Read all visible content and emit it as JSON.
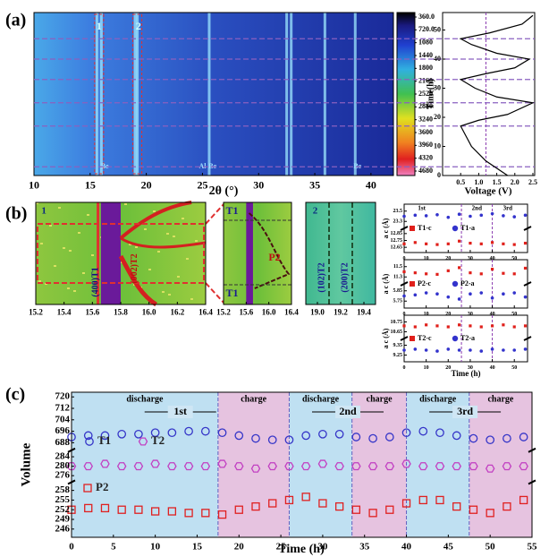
{
  "panel_labels": [
    "(a)",
    "(b)",
    "(c)"
  ],
  "chart_data": [
    {
      "type": "heatmap",
      "xlabel": "2θ (°)",
      "xlim": [
        10,
        42
      ],
      "xticks": [
        10,
        15,
        20,
        25,
        30,
        35,
        40
      ],
      "peaks": [
        15.6,
        16.0,
        19.0,
        19.2,
        25.6,
        32.5,
        32.9,
        35.9,
        38.6
      ],
      "annotations": [
        {
          "text": "1",
          "x": 15.8
        },
        {
          "text": "2",
          "x": 19.3
        },
        {
          "text": "Be",
          "x": 16.3
        },
        {
          "text": "Al",
          "x": 25.0
        },
        {
          "text": "Be",
          "x": 25.9
        },
        {
          "text": "Be",
          "x": 38.8
        }
      ],
      "colorbar": {
        "lim": [
          360,
          4680
        ],
        "ticks": [
          {
            "value": 360,
            "label": "360.0"
          },
          {
            "value": 720,
            "label": "720.0"
          },
          1080,
          1440,
          1800,
          2160,
          2520,
          2880,
          3240,
          3600,
          3960,
          4320,
          4680
        ]
      }
    },
    {
      "type": "line",
      "xlabel": "Voltage (V)",
      "ylabel": "Time(h)",
      "xlim": [
        0,
        2.55
      ],
      "xticks": [
        0.5,
        {
          "value": 1,
          "label": "1.0"
        },
        1.5,
        {
          "value": 2,
          "label": "2.0"
        },
        2.5
      ],
      "ylim": [
        0,
        56
      ],
      "yticks": [
        0,
        10,
        20,
        30,
        40,
        50
      ],
      "x": [
        1.8,
        1.2,
        0.8,
        0.5,
        1.0,
        1.8,
        2.5,
        1.5,
        0.9,
        0.5,
        1.2,
        2.0,
        2.4,
        1.5,
        0.8,
        0.5,
        1.3,
        2.2,
        2.5
      ],
      "values": [
        0,
        5,
        10,
        17,
        19,
        21,
        25,
        27,
        30,
        33,
        35,
        37,
        40,
        42,
        45,
        47,
        49,
        52,
        55
      ],
      "hlines": [
        3,
        17,
        25,
        33,
        40,
        47
      ],
      "vlines": [
        1.2
      ]
    },
    {
      "type": "heatmap",
      "xlim": [
        15.2,
        16.4
      ],
      "xticks": [
        15.2,
        15.4,
        15.6,
        15.8,
        {
          "value": 16,
          "label": "16.0"
        },
        16.2,
        16.4
      ],
      "annotations": [
        {
          "text": "1",
          "x": 15.22
        },
        {
          "text": "(400)T1",
          "x": 15.7
        },
        {
          "text": "(002)T2",
          "x": 15.95
        }
      ]
    },
    {
      "type": "heatmap",
      "xlim": [
        15.2,
        16.4
      ],
      "xticks": [
        15.2,
        15.6,
        {
          "value": 16,
          "label": "16.0"
        },
        16.4
      ],
      "annotations": [
        {
          "text": "T1",
          "x": 15.35
        },
        {
          "text": "P2",
          "x": 16.1
        },
        {
          "text": "T1",
          "x": 15.35
        }
      ]
    },
    {
      "type": "heatmap",
      "xlim": [
        18.9,
        19.5
      ],
      "xticks": [
        {
          "value": 19,
          "label": "19.0"
        },
        19.2,
        19.4
      ],
      "annotations": [
        {
          "text": "2",
          "x": 18.95
        },
        {
          "text": "(102)T2",
          "x": 19.1
        },
        {
          "text": "(200)T2",
          "x": 19.3
        }
      ]
    },
    {
      "type": "line",
      "ylabel": "a c (Å)",
      "xlim": [
        0,
        56
      ],
      "xticks": [
        0,
        10,
        20,
        30,
        40,
        50
      ],
      "vlines": [
        26,
        40
      ],
      "annotations": [
        {
          "text": "1st",
          "x": 8
        },
        {
          "text": "2nd",
          "x": 33
        },
        {
          "text": "3rd",
          "x": 47
        }
      ],
      "x": [
        0,
        5,
        10,
        15,
        20,
        25,
        30,
        35,
        40,
        45,
        50,
        55
      ],
      "ybreaks": [
        {
          "ylim": [
            23.2,
            23.6
          ],
          "yticks": [
            23.3,
            23.5
          ]
        },
        {
          "ylim": [
            12.6,
            12.9
          ],
          "yticks": [
            12.65,
            12.75,
            12.85
          ]
        }
      ],
      "series": [
        {
          "name": "T1-c",
          "color": "#e0201b",
          "segment": 1,
          "values": [
            12.7,
            12.72,
            12.7,
            12.69,
            12.7,
            12.74,
            12.71,
            12.7,
            12.72,
            12.7,
            12.69,
            12.71
          ]
        },
        {
          "name": "T1-a",
          "color": "#3333cc",
          "segment": 0,
          "values": [
            23.4,
            23.42,
            23.41,
            23.43,
            23.38,
            23.44,
            23.4,
            23.42,
            23.45,
            23.41,
            23.39,
            23.42
          ]
        }
      ]
    },
    {
      "type": "line",
      "ylabel": "a c (Å)",
      "xlim": [
        0,
        56
      ],
      "xticks": [
        0,
        10,
        20,
        30,
        40,
        50
      ],
      "vlines": [
        26,
        40
      ],
      "x": [
        0,
        5,
        10,
        15,
        20,
        25,
        30,
        35,
        40,
        45,
        50,
        55
      ],
      "ybreaks": [
        {
          "ylim": [
            11.2,
            11.6
          ],
          "yticks": [
            11.3,
            11.5
          ]
        },
        {
          "ylim": [
            5.7,
            5.9
          ],
          "yticks": [
            5.75,
            5.85
          ]
        }
      ],
      "series": [
        {
          "name": "P2-c",
          "color": "#e0201b",
          "segment": 0,
          "values": [
            11.4,
            11.38,
            11.36,
            11.35,
            11.42,
            11.48,
            11.38,
            11.36,
            11.45,
            11.37,
            11.36,
            11.47
          ]
        },
        {
          "name": "P2-a",
          "color": "#3333cc",
          "segment": 1,
          "values": [
            5.8,
            5.81,
            5.83,
            5.82,
            5.79,
            5.77,
            5.82,
            5.83,
            5.78,
            5.82,
            5.83,
            5.79
          ]
        }
      ]
    },
    {
      "type": "line",
      "ylabel": "a c (Å)",
      "xlabel": "Time (h)",
      "xlim": [
        0,
        56
      ],
      "xticks": [
        0,
        10,
        20,
        30,
        40,
        50
      ],
      "vlines": [
        26,
        40
      ],
      "x": [
        0,
        5,
        10,
        15,
        20,
        25,
        30,
        35,
        40,
        45,
        50,
        55
      ],
      "ybreaks": [
        {
          "ylim": [
            10.6,
            10.8
          ],
          "yticks": [
            10.65,
            10.75
          ]
        },
        {
          "ylim": [
            9.2,
            9.4
          ],
          "yticks": [
            9.25,
            9.35
          ]
        }
      ],
      "series": [
        {
          "name": "T2-c",
          "color": "#e0201b",
          "segment": 0,
          "values": [
            10.71,
            10.7,
            10.72,
            10.71,
            10.7,
            10.72,
            10.71,
            10.7,
            10.71,
            10.72,
            10.7,
            10.71
          ]
        },
        {
          "name": "T2-a",
          "color": "#3333cc",
          "segment": 1,
          "values": [
            9.3,
            9.31,
            9.3,
            9.29,
            9.31,
            9.3,
            9.3,
            9.29,
            9.31,
            9.3,
            9.3,
            9.31
          ]
        }
      ]
    },
    {
      "type": "scatter",
      "ylabel": "Volume",
      "xlabel": "Time (h)",
      "xlim": [
        0,
        55
      ],
      "xticks": [
        0,
        5,
        10,
        15,
        20,
        25,
        30,
        35,
        40,
        45,
        50,
        55
      ],
      "ybreaks": [
        {
          "ylim": [
            684,
            722
          ],
          "yticks": [
            688,
            696,
            704,
            712,
            720
          ]
        },
        {
          "ylim": [
            274,
            286
          ],
          "yticks": [
            276,
            280,
            284
          ]
        },
        {
          "ylim": [
            244,
            260
          ],
          "yticks": [
            246,
            249,
            252,
            255,
            258
          ]
        }
      ],
      "regions": [
        {
          "label": "discharge",
          "x": [
            0,
            17.5
          ],
          "color": "#bfe0f2"
        },
        {
          "label": "charge",
          "x": [
            17.5,
            26
          ],
          "color": "#e6c3e0"
        },
        {
          "label": "discharge",
          "x": [
            26,
            33.5
          ],
          "color": "#bfe0f2"
        },
        {
          "label": "charge",
          "x": [
            33.5,
            40
          ],
          "color": "#e6c3e0"
        },
        {
          "label": "discharge",
          "x": [
            40,
            47.5
          ],
          "color": "#bfe0f2"
        },
        {
          "label": "charge",
          "x": [
            47.5,
            55
          ],
          "color": "#e6c3e0"
        }
      ],
      "annotations": [
        {
          "text": "1st",
          "x": 13
        },
        {
          "text": "2nd",
          "x": 33
        },
        {
          "text": "3rd",
          "x": 47
        }
      ],
      "x": [
        0,
        2,
        4,
        6,
        8,
        10,
        12,
        14,
        16,
        18,
        20,
        22,
        24,
        26,
        28,
        30,
        32,
        34,
        36,
        38,
        40,
        42,
        44,
        46,
        48,
        50,
        52,
        54
      ],
      "series": [
        {
          "name": "T1",
          "color": "#3535c8",
          "segment": 0,
          "values": [
            692,
            693,
            693,
            694,
            694,
            695,
            695,
            696,
            696,
            695,
            693,
            691,
            690,
            690,
            693,
            694,
            694,
            692,
            691,
            692,
            695,
            696,
            695,
            693,
            691,
            690,
            691,
            692
          ]
        },
        {
          "name": "T2",
          "color": "#c23fc2",
          "segment": 1,
          "values": [
            280,
            280,
            281,
            280,
            280,
            281,
            280,
            280,
            280,
            281,
            280,
            279,
            280,
            280,
            280,
            281,
            280,
            280,
            280,
            280,
            281,
            280,
            280,
            280,
            280,
            279,
            280,
            280
          ]
        },
        {
          "name": "P2",
          "color": "#e02020",
          "segment": 2,
          "values": [
            252,
            252.5,
            252.5,
            252,
            252,
            251.5,
            251.5,
            251,
            251,
            250.5,
            252,
            253,
            254,
            255,
            256,
            254,
            253,
            252,
            251,
            252,
            254,
            255,
            255,
            253,
            252,
            251,
            253,
            255
          ]
        }
      ]
    }
  ]
}
